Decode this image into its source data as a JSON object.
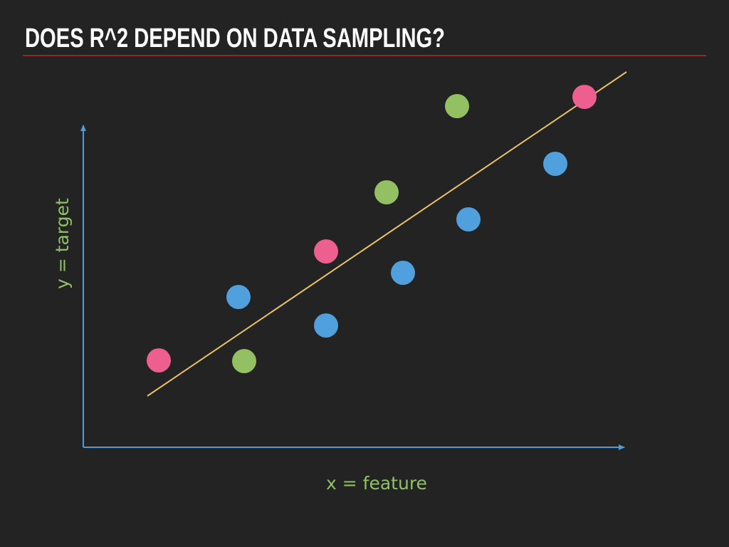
{
  "header": {
    "title": "DOES R^2 DEPEND ON DATA SAMPLING?"
  },
  "axes": {
    "y_label": "y = target",
    "x_label": "x = feature"
  }
}
